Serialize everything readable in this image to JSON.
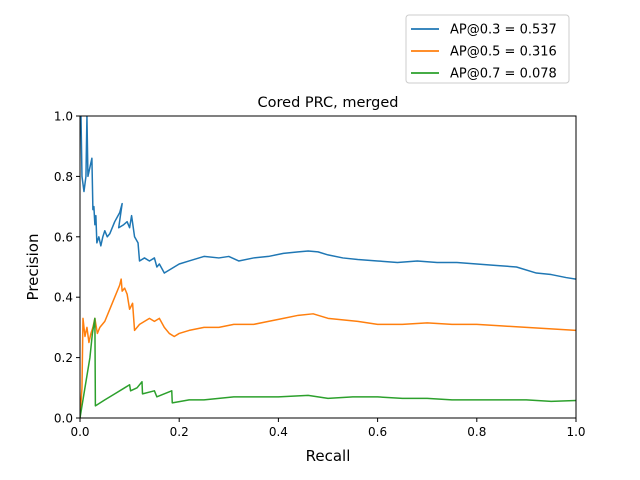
{
  "chart_data": {
    "type": "line",
    "title": "Cored PRC, merged",
    "xlabel": "Recall",
    "ylabel": "Precision",
    "xlim": [
      0,
      1
    ],
    "ylim": [
      0,
      1
    ],
    "x_ticks": [
      "0.0",
      "0.2",
      "0.4",
      "0.6",
      "0.8",
      "1.0"
    ],
    "y_ticks": [
      "0.0",
      "0.2",
      "0.4",
      "0.6",
      "0.8",
      "1.0"
    ],
    "grid": false,
    "legend_position": "upper-right, outside above axes",
    "series": [
      {
        "name": "AP@0.3 = 0.537",
        "color": "#1f77b4",
        "points": [
          [
            0.0,
            1.0
          ],
          [
            0.002,
            1.0
          ],
          [
            0.004,
            0.8
          ],
          [
            0.008,
            0.75
          ],
          [
            0.012,
            0.8
          ],
          [
            0.014,
            1.0
          ],
          [
            0.016,
            0.8
          ],
          [
            0.02,
            0.83
          ],
          [
            0.024,
            0.86
          ],
          [
            0.026,
            0.69
          ],
          [
            0.028,
            0.7
          ],
          [
            0.03,
            0.64
          ],
          [
            0.032,
            0.67
          ],
          [
            0.034,
            0.58
          ],
          [
            0.038,
            0.6
          ],
          [
            0.042,
            0.57
          ],
          [
            0.046,
            0.6
          ],
          [
            0.05,
            0.62
          ],
          [
            0.055,
            0.6
          ],
          [
            0.06,
            0.61
          ],
          [
            0.07,
            0.65
          ],
          [
            0.08,
            0.68
          ],
          [
            0.085,
            0.71
          ],
          [
            0.078,
            0.63
          ],
          [
            0.088,
            0.64
          ],
          [
            0.095,
            0.65
          ],
          [
            0.1,
            0.63
          ],
          [
            0.104,
            0.67
          ],
          [
            0.11,
            0.6
          ],
          [
            0.117,
            0.58
          ],
          [
            0.12,
            0.52
          ],
          [
            0.13,
            0.53
          ],
          [
            0.14,
            0.52
          ],
          [
            0.15,
            0.53
          ],
          [
            0.155,
            0.5
          ],
          [
            0.16,
            0.51
          ],
          [
            0.17,
            0.48
          ],
          [
            0.18,
            0.49
          ],
          [
            0.2,
            0.51
          ],
          [
            0.22,
            0.52
          ],
          [
            0.25,
            0.535
          ],
          [
            0.28,
            0.53
          ],
          [
            0.3,
            0.535
          ],
          [
            0.32,
            0.52
          ],
          [
            0.35,
            0.53
          ],
          [
            0.38,
            0.535
          ],
          [
            0.41,
            0.545
          ],
          [
            0.44,
            0.55
          ],
          [
            0.46,
            0.553
          ],
          [
            0.48,
            0.55
          ],
          [
            0.5,
            0.54
          ],
          [
            0.53,
            0.53
          ],
          [
            0.56,
            0.525
          ],
          [
            0.6,
            0.52
          ],
          [
            0.64,
            0.515
          ],
          [
            0.68,
            0.52
          ],
          [
            0.72,
            0.515
          ],
          [
            0.76,
            0.515
          ],
          [
            0.8,
            0.51
          ],
          [
            0.84,
            0.505
          ],
          [
            0.88,
            0.5
          ],
          [
            0.92,
            0.48
          ],
          [
            0.95,
            0.475
          ],
          [
            0.98,
            0.465
          ],
          [
            1.0,
            0.46
          ]
        ]
      },
      {
        "name": "AP@0.5 = 0.316",
        "color": "#ff7f0e",
        "points": [
          [
            0.0,
            0.0
          ],
          [
            0.004,
            0.1
          ],
          [
            0.006,
            0.33
          ],
          [
            0.01,
            0.27
          ],
          [
            0.014,
            0.3
          ],
          [
            0.018,
            0.25
          ],
          [
            0.022,
            0.28
          ],
          [
            0.026,
            0.3
          ],
          [
            0.03,
            0.33
          ],
          [
            0.035,
            0.28
          ],
          [
            0.04,
            0.3
          ],
          [
            0.05,
            0.32
          ],
          [
            0.06,
            0.36
          ],
          [
            0.07,
            0.4
          ],
          [
            0.08,
            0.44
          ],
          [
            0.083,
            0.46
          ],
          [
            0.085,
            0.42
          ],
          [
            0.09,
            0.43
          ],
          [
            0.095,
            0.41
          ],
          [
            0.1,
            0.36
          ],
          [
            0.106,
            0.38
          ],
          [
            0.11,
            0.29
          ],
          [
            0.12,
            0.31
          ],
          [
            0.13,
            0.32
          ],
          [
            0.14,
            0.33
          ],
          [
            0.15,
            0.32
          ],
          [
            0.16,
            0.33
          ],
          [
            0.17,
            0.3
          ],
          [
            0.18,
            0.28
          ],
          [
            0.19,
            0.27
          ],
          [
            0.2,
            0.28
          ],
          [
            0.22,
            0.29
          ],
          [
            0.25,
            0.3
          ],
          [
            0.28,
            0.3
          ],
          [
            0.31,
            0.31
          ],
          [
            0.35,
            0.31
          ],
          [
            0.38,
            0.32
          ],
          [
            0.41,
            0.33
          ],
          [
            0.44,
            0.34
          ],
          [
            0.47,
            0.345
          ],
          [
            0.5,
            0.33
          ],
          [
            0.53,
            0.325
          ],
          [
            0.56,
            0.32
          ],
          [
            0.6,
            0.31
          ],
          [
            0.65,
            0.31
          ],
          [
            0.7,
            0.315
          ],
          [
            0.75,
            0.31
          ],
          [
            0.8,
            0.31
          ],
          [
            0.85,
            0.305
          ],
          [
            0.9,
            0.3
          ],
          [
            0.95,
            0.295
          ],
          [
            1.0,
            0.29
          ]
        ]
      },
      {
        "name": "AP@0.7 = 0.078",
        "color": "#2ca02c",
        "points": [
          [
            0.0,
            0.0
          ],
          [
            0.01,
            0.1
          ],
          [
            0.02,
            0.2
          ],
          [
            0.025,
            0.28
          ],
          [
            0.03,
            0.33
          ],
          [
            0.031,
            0.04
          ],
          [
            0.05,
            0.06
          ],
          [
            0.07,
            0.08
          ],
          [
            0.09,
            0.1
          ],
          [
            0.1,
            0.11
          ],
          [
            0.102,
            0.09
          ],
          [
            0.115,
            0.1
          ],
          [
            0.125,
            0.12
          ],
          [
            0.126,
            0.08
          ],
          [
            0.15,
            0.09
          ],
          [
            0.155,
            0.07
          ],
          [
            0.17,
            0.08
          ],
          [
            0.185,
            0.09
          ],
          [
            0.186,
            0.05
          ],
          [
            0.22,
            0.06
          ],
          [
            0.25,
            0.06
          ],
          [
            0.28,
            0.065
          ],
          [
            0.31,
            0.07
          ],
          [
            0.35,
            0.07
          ],
          [
            0.4,
            0.07
          ],
          [
            0.46,
            0.075
          ],
          [
            0.5,
            0.065
          ],
          [
            0.55,
            0.07
          ],
          [
            0.6,
            0.07
          ],
          [
            0.65,
            0.065
          ],
          [
            0.7,
            0.065
          ],
          [
            0.75,
            0.06
          ],
          [
            0.8,
            0.06
          ],
          [
            0.85,
            0.06
          ],
          [
            0.9,
            0.06
          ],
          [
            0.95,
            0.055
          ],
          [
            1.0,
            0.058
          ]
        ]
      }
    ]
  }
}
